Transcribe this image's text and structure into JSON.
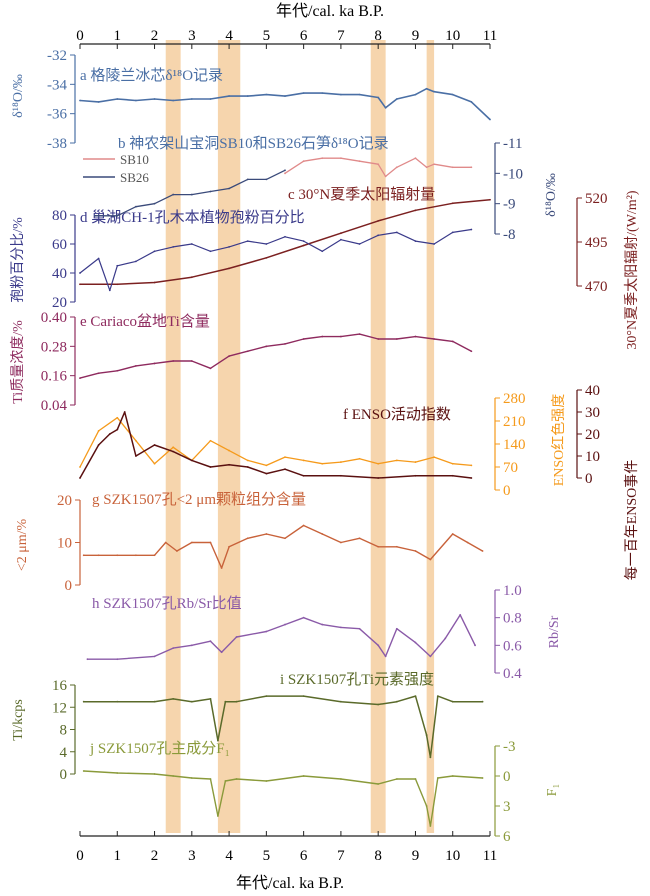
{
  "figure": {
    "x_axis": {
      "label_top": "年代/cal. ka B.P.",
      "label_bottom": "年代/cal. ka B.P.",
      "min": 0,
      "max": 11,
      "ticks": [
        0,
        1,
        2,
        3,
        4,
        5,
        6,
        7,
        8,
        9,
        10,
        11
      ]
    },
    "bands": [
      [
        2.3,
        2.7
      ],
      [
        3.7,
        4.3
      ],
      [
        7.8,
        8.2
      ],
      [
        9.3,
        9.5
      ]
    ],
    "band_color": "#f6d5ad"
  },
  "chart_data": [
    {
      "id": "a",
      "type": "line",
      "title": "a 格陵兰冰芯δ¹⁸O记录",
      "ylabel": "δ¹⁸O/‰",
      "ylim": [
        -38,
        -32
      ],
      "yticks": [
        -32,
        -34,
        -36,
        -38
      ],
      "axis_side": "left",
      "inverted": false,
      "color": "#4a6fa5",
      "x": [
        0,
        0.5,
        1,
        1.5,
        2,
        2.5,
        3,
        3.5,
        4,
        4.5,
        5,
        5.5,
        6,
        6.5,
        7,
        7.5,
        8,
        8.2,
        8.5,
        9,
        9.3,
        9.5,
        10,
        10.5,
        11
      ],
      "series": [
        {
          "name": "",
          "values": [
            -35.1,
            -35.2,
            -35.0,
            -35.1,
            -35.0,
            -35.1,
            -35.0,
            -35.0,
            -34.8,
            -34.8,
            -34.7,
            -34.8,
            -34.6,
            -34.6,
            -34.7,
            -34.7,
            -34.9,
            -35.6,
            -35.0,
            -34.7,
            -34.3,
            -34.5,
            -34.7,
            -35.2,
            -36.4
          ]
        }
      ]
    },
    {
      "id": "b",
      "type": "line",
      "title": "b 神农架山宝洞SB10和SB26石笋δ¹⁸O记录",
      "ylabel": "δ¹⁸O/‰",
      "ylim": [
        -11,
        -8
      ],
      "yticks": [
        -11,
        -10,
        -9,
        -8
      ],
      "axis_side": "right",
      "inverted": true,
      "legend": [
        "SB10",
        "SB26"
      ],
      "series": [
        {
          "name": "SB10",
          "color": "#e08a8a",
          "x": [
            5.5,
            6,
            6.5,
            7,
            7.5,
            8,
            8.2,
            8.5,
            9,
            9.3,
            9.5,
            10,
            10.5
          ],
          "values": [
            -10.0,
            -10.4,
            -10.5,
            -10.5,
            -10.4,
            -10.3,
            -9.9,
            -10.2,
            -10.5,
            -10.2,
            -10.3,
            -10.2,
            -10.2
          ]
        },
        {
          "name": "SB26",
          "color": "#3a4a7a",
          "x": [
            0.4,
            1,
            1.5,
            2,
            2.5,
            3,
            3.5,
            4,
            4.5,
            5,
            5.5
          ],
          "values": [
            -8.6,
            -8.6,
            -8.9,
            -9.0,
            -9.3,
            -9.3,
            -9.4,
            -9.5,
            -9.8,
            -9.8,
            -10.1
          ]
        }
      ]
    },
    {
      "id": "c",
      "type": "line",
      "title": "c 30°N夏季太阳辐射量",
      "ylabel": "30°N夏季太阳辐射/(W/m²)",
      "ylim": [
        470,
        520
      ],
      "yticks": [
        470,
        495,
        520
      ],
      "axis_side": "right",
      "color": "#7b2020",
      "x": [
        0,
        1,
        2,
        3,
        4,
        5,
        6,
        7,
        8,
        9,
        10,
        11
      ],
      "series": [
        {
          "name": "",
          "values": [
            471,
            471,
            472,
            475,
            480,
            486,
            493,
            500,
            507,
            513,
            517,
            519
          ]
        }
      ]
    },
    {
      "id": "d",
      "type": "line",
      "title": "d 巢湖CH-1孔木本植物孢粉百分比",
      "ylabel": "孢粉百分比/%",
      "ylim": [
        20,
        80
      ],
      "yticks": [
        20,
        40,
        60,
        80
      ],
      "axis_side": "left",
      "color": "#3a3a8a",
      "x": [
        0,
        0.5,
        0.8,
        1,
        1.5,
        2,
        2.5,
        3,
        3.5,
        4,
        4.5,
        5,
        5.5,
        6,
        6.5,
        7,
        7.5,
        8,
        8.5,
        9,
        9.5,
        10,
        10.5
      ],
      "series": [
        {
          "name": "",
          "values": [
            40,
            50,
            28,
            45,
            48,
            55,
            58,
            60,
            55,
            58,
            62,
            60,
            65,
            62,
            55,
            63,
            60,
            66,
            68,
            62,
            60,
            68,
            70
          ]
        }
      ]
    },
    {
      "id": "e",
      "type": "line",
      "title": "e Cariaco盆地Ti含量",
      "ylabel": "Ti质量浓度/%",
      "ylim": [
        0.04,
        0.4
      ],
      "yticks": [
        0.04,
        0.16,
        0.28,
        0.4
      ],
      "axis_side": "left",
      "color": "#8e2a5e",
      "x": [
        0,
        0.5,
        1,
        1.5,
        2,
        2.5,
        3,
        3.5,
        4,
        4.5,
        5,
        5.5,
        6,
        6.5,
        7,
        7.5,
        8,
        8.5,
        9,
        9.5,
        10,
        10.5
      ],
      "series": [
        {
          "name": "",
          "values": [
            0.15,
            0.17,
            0.18,
            0.2,
            0.21,
            0.22,
            0.22,
            0.19,
            0.24,
            0.26,
            0.28,
            0.29,
            0.31,
            0.32,
            0.32,
            0.33,
            0.31,
            0.31,
            0.32,
            0.31,
            0.3,
            0.26
          ]
        }
      ]
    },
    {
      "id": "f",
      "type": "line",
      "title": "f ENSO活动指数",
      "ylabel": "ENSO红色强度",
      "ylabel2": "每一百年ENSO事件",
      "ylim": [
        0,
        280
      ],
      "yticks": [
        0,
        70,
        140,
        210,
        280
      ],
      "ylim2": [
        0,
        40
      ],
      "yticks2": [
        0,
        10,
        20,
        30,
        40
      ],
      "series": [
        {
          "name": "ENSO红色强度",
          "color": "#f59a1b",
          "x": [
            0,
            0.5,
            1,
            1.5,
            2,
            2.5,
            3,
            3.5,
            4,
            4.5,
            5,
            5.5,
            6,
            6.5,
            7,
            7.5,
            8,
            8.5,
            9,
            9.5,
            10,
            10.5
          ],
          "values": [
            70,
            180,
            220,
            150,
            80,
            130,
            90,
            150,
            120,
            90,
            75,
            100,
            90,
            80,
            85,
            95,
            80,
            90,
            85,
            100,
            80,
            75
          ]
        },
        {
          "name": "每一百年ENSO事件",
          "color": "#5a1010",
          "x": [
            0,
            0.5,
            0.8,
            1,
            1.2,
            1.5,
            2,
            2.5,
            3,
            3.5,
            4,
            4.5,
            5,
            5.5,
            6,
            7,
            8,
            9,
            10,
            10.5
          ],
          "values": [
            0,
            15,
            20,
            22,
            30,
            10,
            15,
            12,
            8,
            5,
            6,
            5,
            2,
            4,
            1,
            1,
            0,
            1,
            1,
            0
          ]
        }
      ]
    },
    {
      "id": "g",
      "type": "line",
      "title": "g SZK1507孔<2 μm颗粒组分含量",
      "ylabel": "<2 μm/%",
      "ylim": [
        0,
        20
      ],
      "yticks": [
        0,
        10,
        20
      ],
      "axis_side": "left",
      "color": "#c8623a",
      "x": [
        0.1,
        0.5,
        1,
        1.5,
        2,
        2.3,
        2.6,
        3,
        3.5,
        3.8,
        4,
        4.5,
        5,
        5.5,
        6,
        6.5,
        7,
        7.5,
        8,
        8.5,
        9,
        9.4,
        10,
        10.4,
        10.8
      ],
      "series": [
        {
          "name": "",
          "values": [
            7,
            7,
            7,
            7,
            7,
            10,
            8,
            10,
            10,
            4,
            9,
            11,
            12,
            11,
            14,
            12,
            10,
            11,
            9,
            9,
            8,
            6,
            12,
            10,
            8
          ]
        }
      ]
    },
    {
      "id": "h",
      "type": "line",
      "title": "h SZK1507孔Rb/Sr比值",
      "ylabel": "Rb/Sr",
      "ylim": [
        0.4,
        1.0
      ],
      "yticks": [
        0.4,
        0.6,
        0.8,
        1.0
      ],
      "axis_side": "right",
      "color": "#8a5aa8",
      "x": [
        0.2,
        1,
        2,
        2.5,
        3,
        3.5,
        3.8,
        4.2,
        5,
        5.5,
        6,
        6.5,
        7,
        7.5,
        8,
        8.2,
        8.5,
        9,
        9.4,
        9.8,
        10.2,
        10.6
      ],
      "series": [
        {
          "name": "",
          "values": [
            0.5,
            0.5,
            0.52,
            0.58,
            0.6,
            0.63,
            0.55,
            0.66,
            0.7,
            0.75,
            0.8,
            0.75,
            0.73,
            0.72,
            0.6,
            0.52,
            0.72,
            0.62,
            0.52,
            0.65,
            0.82,
            0.6
          ]
        }
      ]
    },
    {
      "id": "i",
      "type": "line",
      "title": "i SZK1507孔Ti元素强度",
      "ylabel": "Ti/kcps",
      "ylim": [
        0,
        16
      ],
      "yticks": [
        0,
        4,
        8,
        12,
        16
      ],
      "axis_side": "left",
      "color": "#5a6a2a",
      "x": [
        0.1,
        1,
        2,
        2.5,
        3,
        3.5,
        3.7,
        3.9,
        4.2,
        5,
        6,
        7,
        8,
        8.5,
        9,
        9.3,
        9.4,
        9.6,
        10,
        10.8
      ],
      "series": [
        {
          "name": "",
          "values": [
            13,
            13,
            13,
            13.5,
            13,
            13.5,
            6,
            13,
            13,
            14,
            14,
            13,
            12.5,
            13,
            14,
            7,
            3,
            14,
            13,
            13
          ]
        }
      ]
    },
    {
      "id": "j",
      "type": "line",
      "title": "j SZK1507孔主成分F₁",
      "ylabel": "F₁",
      "ylim": [
        6,
        -3
      ],
      "yticks": [
        -3,
        0,
        3,
        6
      ],
      "axis_side": "right",
      "inverted": true,
      "color": "#8a9a3a",
      "x": [
        0.1,
        1,
        2,
        2.5,
        3,
        3.5,
        3.7,
        3.9,
        4.2,
        5,
        6,
        7,
        8,
        8.5,
        9,
        9.3,
        9.4,
        9.6,
        10,
        10.8
      ],
      "series": [
        {
          "name": "",
          "values": [
            -0.5,
            -0.3,
            -0.2,
            0,
            0.2,
            0.3,
            4,
            0.5,
            0.3,
            0.5,
            0,
            0.3,
            0.8,
            0.3,
            0.3,
            3,
            5,
            0.2,
            0,
            0.2
          ]
        }
      ]
    }
  ]
}
